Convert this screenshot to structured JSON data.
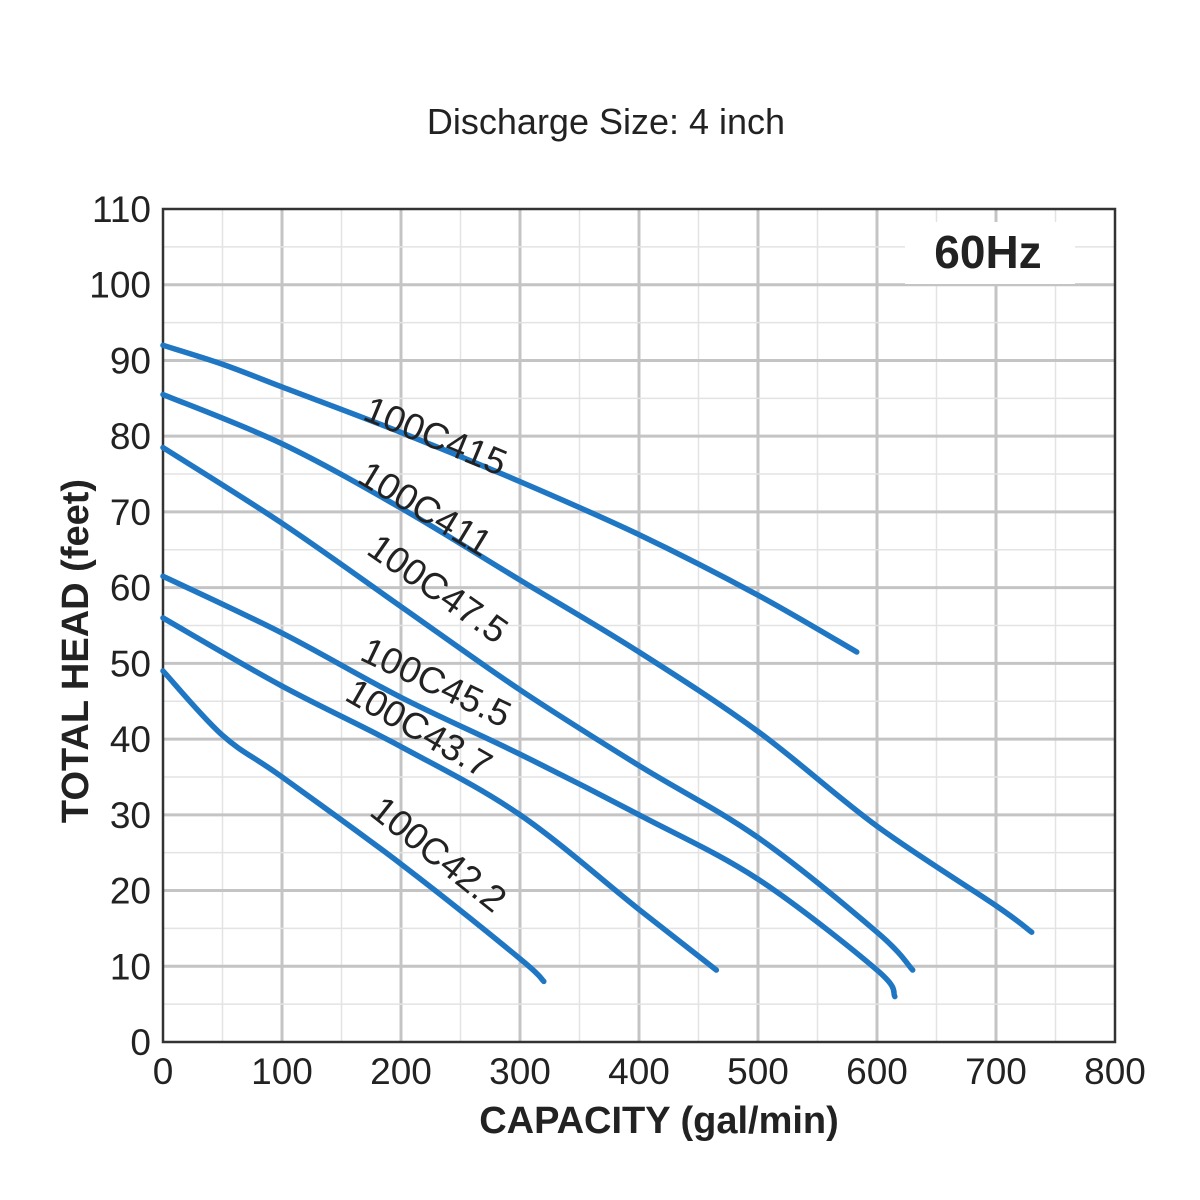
{
  "chart_data": {
    "type": "line",
    "title": "Discharge Size: 4 inch",
    "badge": "60Hz",
    "xlabel": "CAPACITY (gal/min)",
    "ylabel": "TOTAL HEAD (feet)",
    "xlim": [
      0,
      800
    ],
    "ylim": [
      0,
      110
    ],
    "x_ticks": [
      "0",
      "100",
      "200",
      "300",
      "400",
      "500",
      "600",
      "700",
      "800"
    ],
    "y_ticks": [
      "0",
      "10",
      "20",
      "30",
      "40",
      "50",
      "60",
      "70",
      "80",
      "90",
      "100",
      "110"
    ],
    "grid": true,
    "legend": "none",
    "line_color": "#1f77c4",
    "series": [
      {
        "name": "100C415",
        "x": [
          0,
          50,
          100,
          200,
          300,
          400,
          500,
          583
        ],
        "y": [
          92,
          89.5,
          86.5,
          80.5,
          74,
          67,
          59,
          51.5
        ]
      },
      {
        "name": "100C411",
        "x": [
          0,
          100,
          200,
          300,
          400,
          500,
          600,
          700,
          730
        ],
        "y": [
          85.5,
          79,
          70.5,
          61,
          51.5,
          41,
          28.5,
          18,
          14.5
        ]
      },
      {
        "name": "100C47.5",
        "x": [
          0,
          100,
          200,
          300,
          400,
          500,
          600,
          630
        ],
        "y": [
          78.5,
          68.5,
          57.5,
          46.5,
          36.5,
          27,
          14.5,
          9.5
        ]
      },
      {
        "name": "100C45.5",
        "x": [
          0,
          100,
          200,
          300,
          400,
          500,
          600,
          615
        ],
        "y": [
          61.5,
          54,
          45.5,
          38,
          30,
          21.5,
          9.5,
          6
        ]
      },
      {
        "name": "100C43.7",
        "x": [
          0,
          100,
          200,
          300,
          400,
          465
        ],
        "y": [
          56,
          47,
          39,
          30,
          17.5,
          9.5
        ]
      },
      {
        "name": "100C42.2",
        "x": [
          0,
          50,
          100,
          200,
          300,
          320
        ],
        "y": [
          49,
          40.5,
          35,
          23.5,
          11,
          8
        ]
      }
    ]
  }
}
